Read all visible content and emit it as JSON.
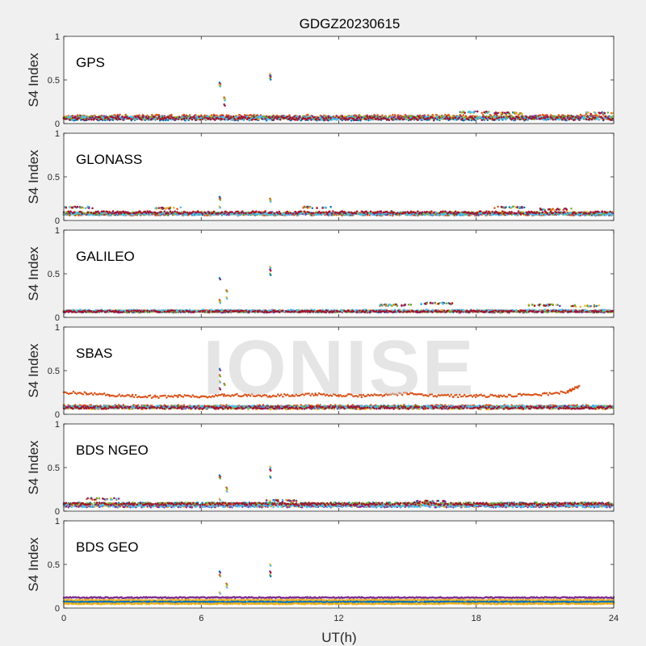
{
  "chart_data": {
    "type": "scatter",
    "title": "GDGZ20230615",
    "xlabel": "UT(h)",
    "ylabel": "S4 Index",
    "xlim": [
      0,
      24
    ],
    "xticks": [
      0,
      6,
      12,
      18,
      24
    ],
    "ylim": [
      0,
      1
    ],
    "yticks": [
      0,
      0.5,
      1
    ],
    "grid": false,
    "watermark": "IONISE",
    "series_colors": [
      "#0072BD",
      "#D95319",
      "#EDB120",
      "#7E2F8E",
      "#77AC30",
      "#4DBEEE",
      "#A2142F"
    ],
    "panels": [
      {
        "name": "GPS",
        "baseline": 0.07,
        "noise": 0.04,
        "bumps": [
          [
            17.9,
            0.13
          ],
          [
            19.5,
            0.12
          ],
          [
            23.5,
            0.12
          ]
        ],
        "spikes": [
          [
            6.8,
            [
              0.47,
              0.45,
              0.44
            ]
          ],
          [
            7.0,
            [
              0.3,
              0.28,
              0.22
            ]
          ],
          [
            9.0,
            [
              0.57,
              0.55,
              0.52
            ]
          ]
        ]
      },
      {
        "name": "GLONASS",
        "baseline": 0.08,
        "noise": 0.03,
        "bumps": [
          [
            0.6,
            0.15
          ],
          [
            4.5,
            0.14
          ],
          [
            11.0,
            0.15
          ],
          [
            19.5,
            0.15
          ],
          [
            21.5,
            0.13
          ]
        ],
        "spikes": [
          [
            6.8,
            [
              0.27,
              0.25,
              0.16
            ]
          ],
          [
            9.0,
            [
              0.25,
              0.23
            ]
          ]
        ]
      },
      {
        "name": "GALILEO",
        "baseline": 0.07,
        "noise": 0.02,
        "bumps": [
          [
            14.5,
            0.14
          ],
          [
            16.3,
            0.16
          ],
          [
            21.0,
            0.14
          ],
          [
            22.7,
            0.13
          ]
        ],
        "spikes": [
          [
            6.8,
            [
              0.45,
              0.2,
              0.18
            ]
          ],
          [
            7.1,
            [
              0.31,
              0.23
            ]
          ],
          [
            9.0,
            [
              0.58,
              0.55,
              0.5
            ]
          ]
        ]
      },
      {
        "name": "SBAS",
        "baseline": 0.08,
        "noise": 0.03,
        "bumps": [],
        "spikes": [
          [
            6.8,
            [
              0.52,
              0.45,
              0.38,
              0.3
            ]
          ],
          [
            7.0,
            [
              0.35
            ]
          ]
        ],
        "high_series": {
          "color_index": 1,
          "points": [
            [
              0,
              0.25
            ],
            [
              1,
              0.24
            ],
            [
              2,
              0.22
            ],
            [
              3,
              0.21
            ],
            [
              4,
              0.2
            ],
            [
              5,
              0.21
            ],
            [
              6,
              0.2
            ],
            [
              7,
              0.22
            ],
            [
              8,
              0.22
            ],
            [
              9,
              0.21
            ],
            [
              10,
              0.22
            ],
            [
              11,
              0.23
            ],
            [
              12,
              0.22
            ],
            [
              13,
              0.21
            ],
            [
              14,
              0.22
            ],
            [
              15,
              0.24
            ],
            [
              16,
              0.22
            ],
            [
              17,
              0.21
            ],
            [
              18,
              0.21
            ],
            [
              19,
              0.21
            ],
            [
              20,
              0.22
            ],
            [
              21,
              0.23
            ],
            [
              22,
              0.26
            ],
            [
              22.5,
              0.32
            ]
          ]
        }
      },
      {
        "name": "BDS NGEO",
        "baseline": 0.07,
        "noise": 0.03,
        "bumps": [
          [
            1.7,
            0.14
          ],
          [
            9.5,
            0.12
          ],
          [
            16.0,
            0.11
          ]
        ],
        "spikes": [
          [
            6.8,
            [
              0.41,
              0.39,
              0.14
            ]
          ],
          [
            7.1,
            [
              0.27,
              0.24
            ]
          ],
          [
            9.0,
            [
              0.51,
              0.48,
              0.4
            ]
          ]
        ]
      },
      {
        "name": "BDS GEO",
        "baseline": 0.1,
        "noise": 0.01,
        "bumps": [],
        "spikes": [
          [
            6.8,
            [
              0.42,
              0.38,
              0.18
            ]
          ],
          [
            7.1,
            [
              0.28,
              0.25
            ]
          ],
          [
            9.0,
            [
              0.5,
              0.42,
              0.38
            ]
          ]
        ],
        "geo_levels": [
          [
            0.12,
            3
          ],
          [
            0.09,
            2
          ],
          [
            0.07,
            0
          ],
          [
            0.05,
            2
          ]
        ]
      }
    ]
  }
}
